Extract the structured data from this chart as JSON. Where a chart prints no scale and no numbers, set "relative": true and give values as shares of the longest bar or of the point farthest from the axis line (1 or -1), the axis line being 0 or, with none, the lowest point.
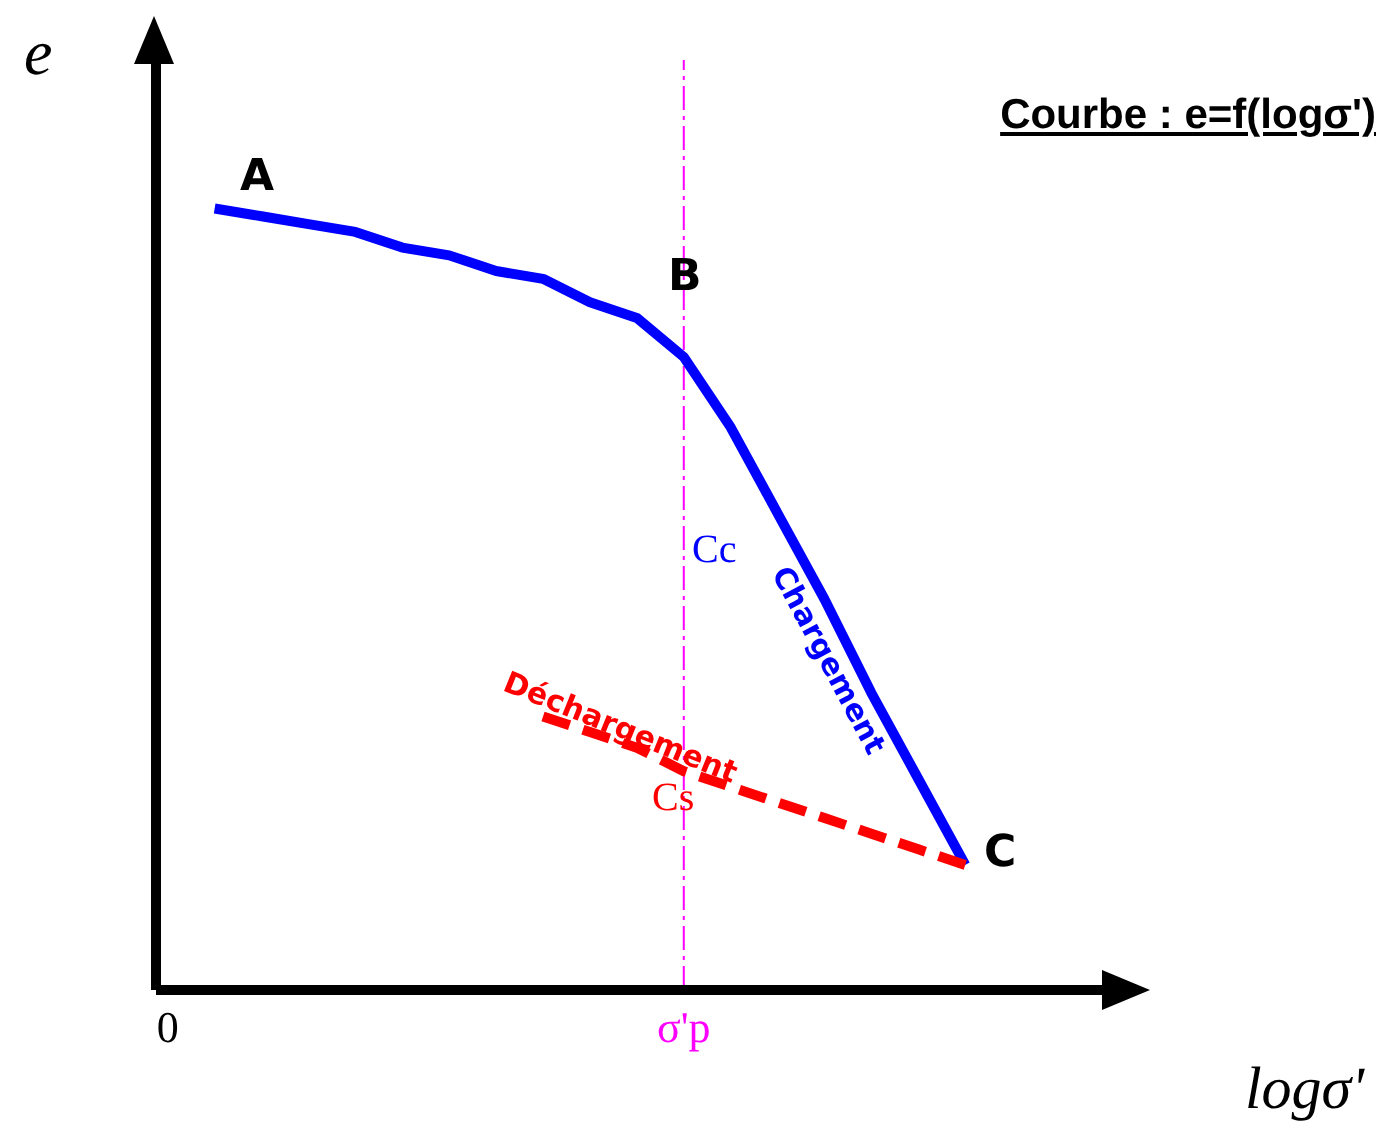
{
  "chart_data": {
    "type": "line",
    "title": "Courbe : e=f(logσ')",
    "xlabel": "logσ'",
    "ylabel": "e",
    "relative": true,
    "marker": "none",
    "categories": [
      "0",
      null,
      null,
      null,
      null,
      null,
      null,
      null,
      null,
      null,
      null,
      "σ'p",
      null,
      null,
      null,
      null,
      null,
      null,
      null,
      null,
      null
    ],
    "series": [
      {
        "name": "Chargement",
        "color": "#0000ff",
        "line_style": "solid",
        "values": [
          null,
          1,
          0.99,
          0.98,
          0.97,
          0.95,
          0.94,
          0.92,
          0.91,
          0.88,
          0.86,
          0.81,
          0.72,
          0.61,
          0.5,
          0.38,
          0.27,
          0.16,
          null,
          null,
          null
        ]
      },
      {
        "name": "Déchargement",
        "color": "#ff0000",
        "line_style": "dashed",
        "values": [
          null,
          null,
          null,
          null,
          null,
          null,
          null,
          null,
          0.35,
          0.33,
          0.31,
          0.28,
          0.26,
          0.24,
          0.22,
          0.2,
          0.18,
          0.16,
          null,
          null,
          null
        ]
      }
    ],
    "ref_lines": [
      {
        "axis": "x",
        "value": "σ'p",
        "color": "#ff00ff",
        "line_style": "dashed"
      }
    ],
    "annotations": [
      "A",
      "B",
      "C",
      "Cc",
      "Cs"
    ]
  }
}
